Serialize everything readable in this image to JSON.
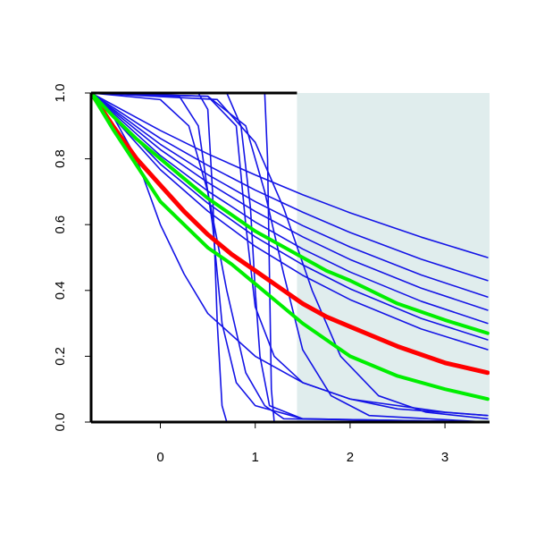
{
  "chart_data": {
    "type": "line",
    "xlim": [
      -0.73,
      3.47
    ],
    "ylim": [
      0,
      1
    ],
    "xticks": [
      0,
      1,
      2,
      3
    ],
    "yticks": [
      {
        "value": 0,
        "label": "0.0"
      },
      {
        "value": 0.2,
        "label": "0.2"
      },
      {
        "value": 0.4,
        "label": "0.4"
      },
      {
        "value": 0.6,
        "label": "0.6"
      },
      {
        "value": 0.8,
        "label": "0.8"
      },
      {
        "value": 1,
        "label": "1.0"
      }
    ],
    "highlight": {
      "xlim": [
        1.44,
        3.47
      ],
      "color": "#e0eded"
    },
    "series": [
      {
        "color": "#1414e6",
        "x": [
          -0.73,
          0,
          0.5,
          1,
          1.5,
          2,
          2.75,
          3.45
        ],
        "values": [
          1,
          0.886,
          0.815,
          0.751,
          0.691,
          0.636,
          0.562,
          0.5
        ]
      },
      {
        "color": "#1414e6",
        "x": [
          -0.73,
          0,
          0.5,
          1,
          1.5,
          2,
          2.75,
          3.45
        ],
        "values": [
          1,
          0.862,
          0.78,
          0.705,
          0.638,
          0.576,
          0.495,
          0.43
        ]
      },
      {
        "color": "#1414e6",
        "x": [
          -0.73,
          0,
          0.5,
          1,
          1.5,
          2,
          2.75,
          3.45
        ],
        "values": [
          1,
          0.844,
          0.752,
          0.67,
          0.597,
          0.532,
          0.447,
          0.38
        ]
      },
      {
        "color": "#1414e6",
        "x": [
          -0.73,
          0,
          0.5,
          1,
          1.5,
          2,
          2.75,
          3.45
        ],
        "values": [
          1,
          0.828,
          0.728,
          0.64,
          0.563,
          0.494,
          0.407,
          0.34
        ]
      },
      {
        "color": "#1414e6",
        "x": [
          -0.73,
          0,
          0.5,
          1,
          1.5,
          2,
          2.75,
          3.45
        ],
        "values": [
          1,
          0.81,
          0.702,
          0.608,
          0.526,
          0.456,
          0.367,
          0.3
        ]
      },
      {
        "color": "#1414e6",
        "x": [
          -0.73,
          0,
          0.5,
          1,
          1.5,
          2,
          2.75,
          3.45
        ],
        "values": [
          1,
          0.784,
          0.665,
          0.563,
          0.478,
          0.405,
          0.315,
          0.25
        ]
      },
      {
        "color": "#1414e6",
        "x": [
          -0.73,
          0,
          0.5,
          1,
          1.5,
          2,
          2.75,
          3.45
        ],
        "values": [
          1,
          0.767,
          0.641,
          0.534,
          0.446,
          0.372,
          0.283,
          0.22
        ]
      },
      {
        "color": "#1414e6",
        "x": [
          -0.73,
          0.4,
          0.5,
          0.55,
          0.6,
          0.65,
          0.7,
          3.45
        ],
        "values": [
          1,
          1,
          0.95,
          0.7,
          0.3,
          0.05,
          0,
          0
        ]
      },
      {
        "color": "#1414e6",
        "x": [
          -0.73,
          0.2,
          0.4,
          0.55,
          0.65,
          0.8,
          1.0,
          1.5,
          3.45
        ],
        "values": [
          1,
          0.99,
          0.9,
          0.6,
          0.3,
          0.12,
          0.05,
          0.01,
          0
        ]
      },
      {
        "color": "#1414e6",
        "x": [
          -0.73,
          0.7,
          0.85,
          0.95,
          1.0,
          1.05,
          1.15,
          1.5,
          3.45
        ],
        "values": [
          1,
          1,
          0.9,
          0.65,
          0.4,
          0.2,
          0.05,
          0.01,
          0
        ]
      },
      {
        "color": "#1414e6",
        "x": [
          -0.73,
          1.1,
          1.13,
          1.17,
          1.2,
          3.45
        ],
        "values": [
          1,
          1,
          0.8,
          0.1,
          0,
          0
        ]
      },
      {
        "color": "#1414e6",
        "x": [
          -0.73,
          0.5,
          0.9,
          1.1,
          1.3,
          1.5,
          1.8,
          2.2,
          3.45
        ],
        "values": [
          1,
          0.99,
          0.9,
          0.7,
          0.45,
          0.22,
          0.08,
          0.02,
          0
        ]
      },
      {
        "color": "#1414e6",
        "x": [
          -0.73,
          0.6,
          1.0,
          1.3,
          1.6,
          1.9,
          2.3,
          2.8,
          3.45
        ],
        "values": [
          1,
          0.98,
          0.85,
          0.65,
          0.4,
          0.2,
          0.08,
          0.03,
          0.01
        ]
      },
      {
        "color": "#1414e6",
        "x": [
          -0.73,
          -0.5,
          -0.25,
          0,
          0.25,
          0.5,
          1,
          1.5,
          2,
          3,
          3.45
        ],
        "values": [
          1,
          0.93,
          0.8,
          0.6,
          0.45,
          0.33,
          0.2,
          0.12,
          0.07,
          0.03,
          0.02
        ]
      },
      {
        "color": "#1414e6",
        "x": [
          -0.73,
          0.5,
          0.8,
          0.9,
          1.0,
          1.2,
          1.5,
          2,
          2.5,
          3.45
        ],
        "values": [
          1,
          0.99,
          0.9,
          0.6,
          0.35,
          0.2,
          0.12,
          0.07,
          0.04,
          0.02
        ]
      },
      {
        "color": "#1414e6",
        "x": [
          -0.73,
          0,
          0.3,
          0.5,
          0.7,
          0.9,
          1.1,
          1.3,
          3.45
        ],
        "values": [
          1,
          0.98,
          0.9,
          0.7,
          0.4,
          0.15,
          0.05,
          0.01,
          0
        ]
      },
      {
        "color": "#ff0000",
        "width": 5,
        "x": [
          -0.73,
          -0.5,
          -0.25,
          0,
          0.25,
          0.5,
          0.75,
          1,
          1.25,
          1.5,
          1.75,
          2,
          2.5,
          3,
          3.45
        ],
        "values": [
          1,
          0.9,
          0.8,
          0.72,
          0.64,
          0.57,
          0.51,
          0.46,
          0.41,
          0.36,
          0.32,
          0.29,
          0.23,
          0.18,
          0.15
        ]
      },
      {
        "color": "#00ee00",
        "width": 4,
        "x": [
          -0.73,
          -0.5,
          -0.25,
          0,
          0.25,
          0.5,
          0.75,
          1,
          1.25,
          1.5,
          1.75,
          2,
          2.5,
          3,
          3.45
        ],
        "values": [
          1,
          0.93,
          0.86,
          0.8,
          0.74,
          0.68,
          0.63,
          0.58,
          0.54,
          0.5,
          0.46,
          0.43,
          0.36,
          0.31,
          0.27
        ]
      },
      {
        "color": "#00ee00",
        "width": 4,
        "x": [
          -0.73,
          -0.5,
          -0.25,
          0,
          0.25,
          0.5,
          0.75,
          1,
          1.25,
          1.5,
          1.75,
          2,
          2.5,
          3,
          3.45
        ],
        "values": [
          1,
          0.89,
          0.78,
          0.67,
          0.6,
          0.53,
          0.48,
          0.42,
          0.36,
          0.3,
          0.25,
          0.2,
          0.14,
          0.1,
          0.07
        ]
      }
    ]
  }
}
